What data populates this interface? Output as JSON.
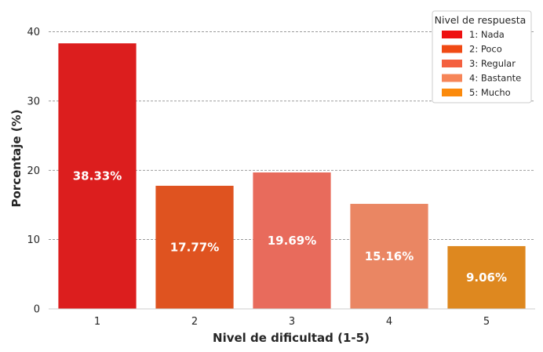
{
  "chart_data": {
    "type": "bar",
    "title": "",
    "xlabel": "Nivel de dificultad (1-5)",
    "ylabel": "Porcentaje (%)",
    "categories": [
      "1",
      "2",
      "3",
      "4",
      "5"
    ],
    "values": [
      38.33,
      17.77,
      19.69,
      15.16,
      9.06
    ],
    "value_labels": [
      "38.33%",
      "17.77%",
      "19.69%",
      "15.16%",
      "9.06%"
    ],
    "ylim": [
      0,
      43
    ],
    "yticks": [
      0,
      10,
      20,
      30,
      40
    ],
    "bar_colors": [
      "#dc1e1e",
      "#df5320",
      "#e86b5c",
      "#ea8663",
      "#de881f"
    ],
    "grid": "horizontal-dashed",
    "legend": {
      "title": "Nivel de respuesta",
      "position": "top-right",
      "entries": [
        {
          "label": "1: Nada",
          "color": "#ee1111"
        },
        {
          "label": "2: Poco",
          "color": "#f04a14"
        },
        {
          "label": "3: Regular",
          "color": "#f4603f"
        },
        {
          "label": "4: Bastante",
          "color": "#f68558"
        },
        {
          "label": "5: Mucho",
          "color": "#fb8a0c"
        }
      ]
    }
  }
}
